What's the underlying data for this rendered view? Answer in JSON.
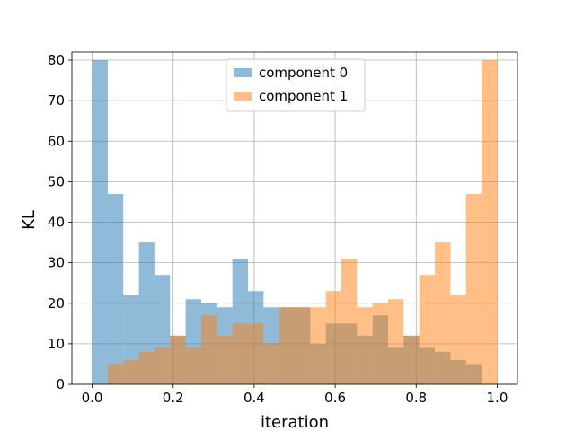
{
  "chart_data": {
    "type": "bar",
    "histogram": true,
    "title": "",
    "xlabel": "iteration",
    "ylabel": "KL",
    "xlim": [
      -0.05,
      1.05
    ],
    "ylim": [
      0,
      82
    ],
    "xticks": [
      0.0,
      0.2,
      0.4,
      0.6,
      0.8,
      1.0
    ],
    "xtick_labels": [
      "0.0",
      "0.2",
      "0.4",
      "0.6",
      "0.8",
      "1.0"
    ],
    "yticks": [
      0,
      10,
      20,
      30,
      40,
      50,
      60,
      70,
      80
    ],
    "ytick_labels": [
      "0",
      "10",
      "20",
      "30",
      "40",
      "50",
      "60",
      "70",
      "80"
    ],
    "grid": true,
    "legend": {
      "placement": "top-center"
    },
    "bin_edges": [
      0.0,
      0.0385,
      0.0769,
      0.1154,
      0.1538,
      0.1923,
      0.2308,
      0.2692,
      0.3077,
      0.3462,
      0.3846,
      0.4231,
      0.4615,
      0.5,
      0.5385,
      0.5769,
      0.6154,
      0.6538,
      0.6923,
      0.7308,
      0.7692,
      0.8077,
      0.8462,
      0.8846,
      0.9231,
      0.9615,
      1.0
    ],
    "series": [
      {
        "name": "component 0",
        "color": "#1f77b4",
        "alpha": 0.5,
        "values": [
          80,
          47,
          22,
          35,
          27,
          12,
          21,
          20,
          19,
          31,
          23,
          19,
          19,
          19,
          10,
          15,
          15,
          12,
          17,
          9,
          12,
          9,
          8,
          6,
          5,
          0
        ]
      },
      {
        "name": "component 1",
        "color": "#ff7f0e",
        "alpha": 0.5,
        "values": [
          0,
          5,
          6,
          8,
          9,
          12,
          9,
          17,
          12,
          15,
          15,
          10,
          19,
          19,
          19,
          23,
          31,
          19,
          20,
          21,
          12,
          27,
          35,
          22,
          47,
          80
        ]
      }
    ]
  }
}
